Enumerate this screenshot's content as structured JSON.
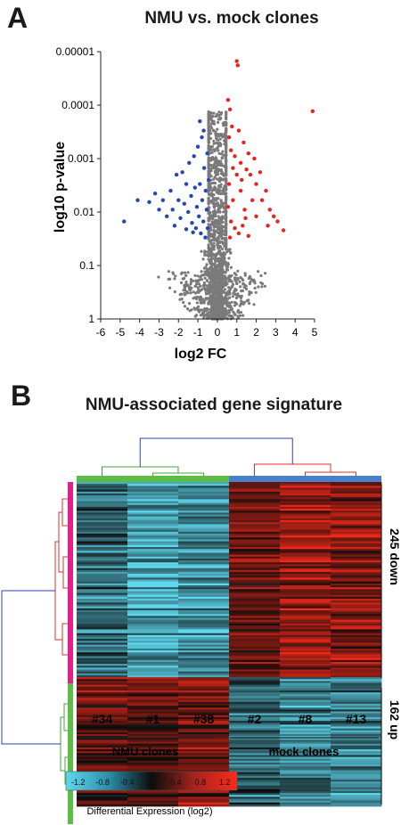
{
  "panel_a": {
    "letter": "A",
    "title": "NMU vs. mock clones",
    "xlabel": "log2 FC",
    "ylabel": "log10 p-value",
    "x_ticks": [
      "-6",
      "-5",
      "-4",
      "-3",
      "-2",
      "-1",
      "0",
      "1",
      "2",
      "3",
      "4",
      "5"
    ],
    "y_ticks": [
      "0.00001",
      "0.0001",
      "0.001",
      "0.01",
      "0.1",
      "1"
    ]
  },
  "panel_b": {
    "letter": "B",
    "title": "NMU-associated gene signature",
    "columns": [
      "#34",
      "#1",
      "#38",
      "#2",
      "#8",
      "#13"
    ],
    "group_labels": [
      "NMU clones",
      "mock clones"
    ],
    "row_blocks": [
      "245 down",
      "162 up"
    ],
    "colorbar_ticks": [
      "-1.2",
      "-0.8",
      "-0.4",
      "0.0",
      "0.4",
      "0.8",
      "1.2"
    ],
    "colorbar_label": "Differential Expression (log2)"
  },
  "colors": {
    "down": "#2547b5",
    "up": "#e8231d",
    "neutral": "#7a7a7a",
    "nmu_group": "#5dbb46",
    "mock_group": "#4a7fc9",
    "row_top": "#e0218a",
    "row_bottom": "#5dbb46",
    "dendro_root": "#2b3fb0",
    "dendro_green": "#3aa935",
    "dendro_red": "#d8302a"
  },
  "chart_data": [
    {
      "type": "scatter",
      "title": "NMU vs. mock clones",
      "xlabel": "log2 FC",
      "ylabel": "log10 p-value",
      "xlim": [
        -6,
        5
      ],
      "ylim": [
        1,
        1e-05
      ],
      "y_scale": "log",
      "y_inverted": true,
      "grid": false,
      "series": [
        {
          "color": "down",
          "points": [
            [
              -4.8,
              0.015
            ],
            [
              -4.1,
              0.006
            ],
            [
              -3.5,
              0.0065
            ],
            [
              -3.2,
              0.0045
            ],
            [
              -3.0,
              0.009
            ],
            [
              -2.8,
              0.006
            ],
            [
              -2.6,
              0.012
            ],
            [
              -2.4,
              0.004
            ],
            [
              -2.3,
              0.009
            ],
            [
              -2.1,
              0.002
            ],
            [
              -2.0,
              0.006
            ],
            [
              -1.9,
              0.013
            ],
            [
              -1.8,
              0.0018
            ],
            [
              -1.7,
              0.007
            ],
            [
              -1.6,
              0.003
            ],
            [
              -1.5,
              0.01
            ],
            [
              -1.45,
              0.0012
            ],
            [
              -1.35,
              0.005
            ],
            [
              -1.3,
              0.016
            ],
            [
              -1.2,
              0.0009
            ],
            [
              -1.15,
              0.0035
            ],
            [
              -1.1,
              0.02
            ],
            [
              -1.05,
              0.008
            ],
            [
              -1.0,
              0.0006
            ],
            [
              -0.95,
              0.012
            ],
            [
              -0.9,
              0.003
            ],
            [
              -0.85,
              0.025
            ],
            [
              -0.8,
              0.0004
            ],
            [
              -0.78,
              0.006
            ],
            [
              -0.72,
              0.015
            ],
            [
              -0.68,
              0.0015
            ],
            [
              -0.62,
              0.03
            ],
            [
              -0.6,
              0.004
            ],
            [
              -0.55,
              0.009
            ],
            [
              -0.52,
              0.0008
            ],
            [
              -0.5,
              0.02
            ],
            [
              -0.45,
              0.0025
            ],
            [
              -1.25,
              0.024
            ],
            [
              -1.6,
              0.021
            ],
            [
              -2.2,
              0.018
            ],
            [
              -0.7,
              0.0003
            ],
            [
              -0.9,
              0.0002
            ]
          ]
        },
        {
          "color": "up",
          "points": [
            [
              1.0,
              1.5e-05
            ],
            [
              1.05,
              1.8e-05
            ],
            [
              4.9,
              0.00013
            ],
            [
              0.55,
              8e-05
            ],
            [
              0.65,
              0.00012
            ],
            [
              0.75,
              0.00025
            ],
            [
              0.6,
              0.0004
            ],
            [
              0.7,
              0.0007
            ],
            [
              0.9,
              0.0009
            ],
            [
              1.1,
              0.0003
            ],
            [
              1.2,
              0.0012
            ],
            [
              1.35,
              0.0005
            ],
            [
              1.5,
              0.0016
            ],
            [
              1.6,
              0.0008
            ],
            [
              1.7,
              0.002
            ],
            [
              1.9,
              0.001
            ],
            [
              2.0,
              0.003
            ],
            [
              2.2,
              0.0018
            ],
            [
              2.3,
              0.006
            ],
            [
              2.5,
              0.004
            ],
            [
              2.7,
              0.009
            ],
            [
              2.9,
              0.012
            ],
            [
              3.1,
              0.015
            ],
            [
              3.4,
              0.022
            ],
            [
              2.6,
              0.018
            ],
            [
              2.0,
              0.012
            ],
            [
              1.8,
              0.006
            ],
            [
              1.4,
              0.009
            ],
            [
              1.2,
              0.004
            ],
            [
              1.0,
              0.002
            ],
            [
              0.8,
              0.006
            ],
            [
              0.7,
              0.015
            ],
            [
              0.6,
              0.003
            ],
            [
              0.55,
              0.008
            ],
            [
              0.9,
              0.02
            ],
            [
              1.1,
              0.025
            ],
            [
              1.3,
              0.018
            ],
            [
              1.6,
              0.028
            ],
            [
              0.65,
              0.03
            ],
            [
              0.8,
              0.0015
            ],
            [
              1.25,
              0.0025
            ],
            [
              1.45,
              0.013
            ]
          ]
        }
      ]
    },
    {
      "type": "heatmap",
      "title": "NMU-associated gene signature",
      "columns": [
        "#34",
        "#1",
        "#38",
        "#2",
        "#8",
        "#13"
      ],
      "groups": [
        {
          "name": "NMU clones",
          "columns": [
            "#34",
            "#1",
            "#38"
          ]
        },
        {
          "name": "mock clones",
          "columns": [
            "#2",
            "#8",
            "#13"
          ]
        }
      ],
      "row_blocks": [
        {
          "label": "245 down",
          "rows": 245,
          "mean_values": [
            -0.6,
            -1.0,
            -0.9,
            0.5,
            0.8,
            0.7
          ]
        },
        {
          "label": "162 up",
          "rows": 162,
          "mean_values": [
            0.5,
            0.5,
            0.6,
            -0.6,
            -0.8,
            -0.8
          ]
        }
      ],
      "color_range": [
        -1.4,
        1.4
      ],
      "colorbar_label": "Differential Expression (log2)"
    }
  ]
}
